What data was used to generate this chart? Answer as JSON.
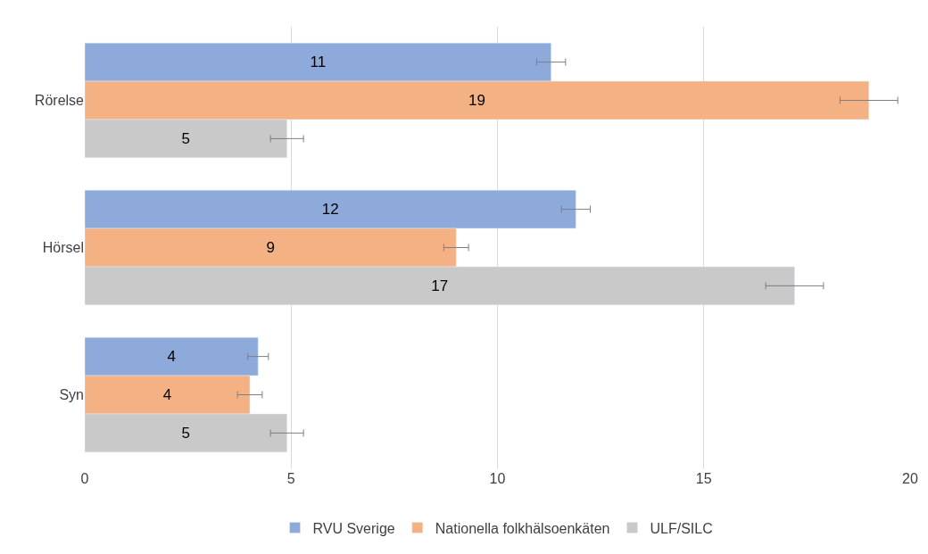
{
  "chart_data": {
    "type": "bar",
    "orientation": "horizontal",
    "categories": [
      "Rörelse",
      "Hörsel",
      "Syn"
    ],
    "series": [
      {
        "name": "RVU Sverige",
        "color": "#8eaadb",
        "values": [
          11.3,
          11.9,
          4.2
        ],
        "errors": [
          0.35,
          0.35,
          0.25
        ],
        "value_labels": [
          "11",
          "12",
          "4"
        ]
      },
      {
        "name": "Nationella folkhälsoenkäten",
        "color": "#f4b183",
        "values": [
          19.0,
          9.0,
          4.0
        ],
        "errors": [
          0.7,
          0.3,
          0.3
        ],
        "value_labels": [
          "19",
          "9",
          "4"
        ]
      },
      {
        "name": "ULF/SILC",
        "color": "#c9c9c9",
        "values": [
          4.9,
          17.2,
          4.9
        ],
        "errors": [
          0.4,
          0.7,
          0.4
        ],
        "value_labels": [
          "5",
          "17",
          "5"
        ]
      }
    ],
    "xlim": [
      0,
      20
    ],
    "xticks": [
      0,
      5,
      10,
      15,
      20
    ],
    "grid": "x",
    "legend": "bottom"
  }
}
